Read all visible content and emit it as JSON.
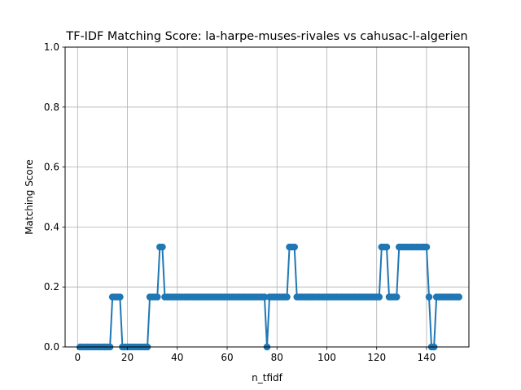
{
  "chart_data": {
    "type": "line",
    "title": "TF-IDF Matching Score: la-harpe-muses-rivales vs cahusac-l-algerien",
    "xlabel": "n_tfidf",
    "ylabel": "Matching Score",
    "xlim": [
      -5,
      157
    ],
    "ylim": [
      0,
      1.0
    ],
    "xticks": [
      0,
      20,
      40,
      60,
      80,
      100,
      120,
      140
    ],
    "yticks": [
      0.0,
      0.2,
      0.4,
      0.6,
      0.8,
      1.0
    ],
    "ytick_labels": [
      "0.0",
      "0.2",
      "0.4",
      "0.6",
      "0.8",
      "1.0"
    ],
    "grid": true,
    "color": "#1f77b4",
    "marker": "circle",
    "x_start": 1,
    "values": [
      0,
      0,
      0,
      0,
      0,
      0,
      0,
      0,
      0,
      0,
      0,
      0,
      0,
      0.1667,
      0.1667,
      0.1667,
      0.1667,
      0,
      0,
      0,
      0,
      0,
      0,
      0,
      0,
      0,
      0,
      0,
      0.1667,
      0.1667,
      0.1667,
      0.1667,
      0.3333,
      0.3333,
      0.1667,
      0.1667,
      0.1667,
      0.1667,
      0.1667,
      0.1667,
      0.1667,
      0.1667,
      0.1667,
      0.1667,
      0.1667,
      0.1667,
      0.1667,
      0.1667,
      0.1667,
      0.1667,
      0.1667,
      0.1667,
      0.1667,
      0.1667,
      0.1667,
      0.1667,
      0.1667,
      0.1667,
      0.1667,
      0.1667,
      0.1667,
      0.1667,
      0.1667,
      0.1667,
      0.1667,
      0.1667,
      0.1667,
      0.1667,
      0.1667,
      0.1667,
      0.1667,
      0.1667,
      0.1667,
      0.1667,
      0.1667,
      0,
      0.1667,
      0.1667,
      0.1667,
      0.1667,
      0.1667,
      0.1667,
      0.1667,
      0.1667,
      0.3333,
      0.3333,
      0.3333,
      0.1667,
      0.1667,
      0.1667,
      0.1667,
      0.1667,
      0.1667,
      0.1667,
      0.1667,
      0.1667,
      0.1667,
      0.1667,
      0.1667,
      0.1667,
      0.1667,
      0.1667,
      0.1667,
      0.1667,
      0.1667,
      0.1667,
      0.1667,
      0.1667,
      0.1667,
      0.1667,
      0.1667,
      0.1667,
      0.1667,
      0.1667,
      0.1667,
      0.1667,
      0.1667,
      0.1667,
      0.1667,
      0.1667,
      0.1667,
      0.3333,
      0.3333,
      0.3333,
      0.1667,
      0.1667,
      0.1667,
      0.1667,
      0.3333,
      0.3333,
      0.3333,
      0.3333,
      0.3333,
      0.3333,
      0.3333,
      0.3333,
      0.3333,
      0.3333,
      0.3333,
      0.3333,
      0.1667,
      0,
      0,
      0.1667,
      0.1667,
      0.1667,
      0.1667,
      0.1667,
      0.1667,
      0.1667,
      0.1667,
      0.1667,
      0.1667
    ]
  }
}
